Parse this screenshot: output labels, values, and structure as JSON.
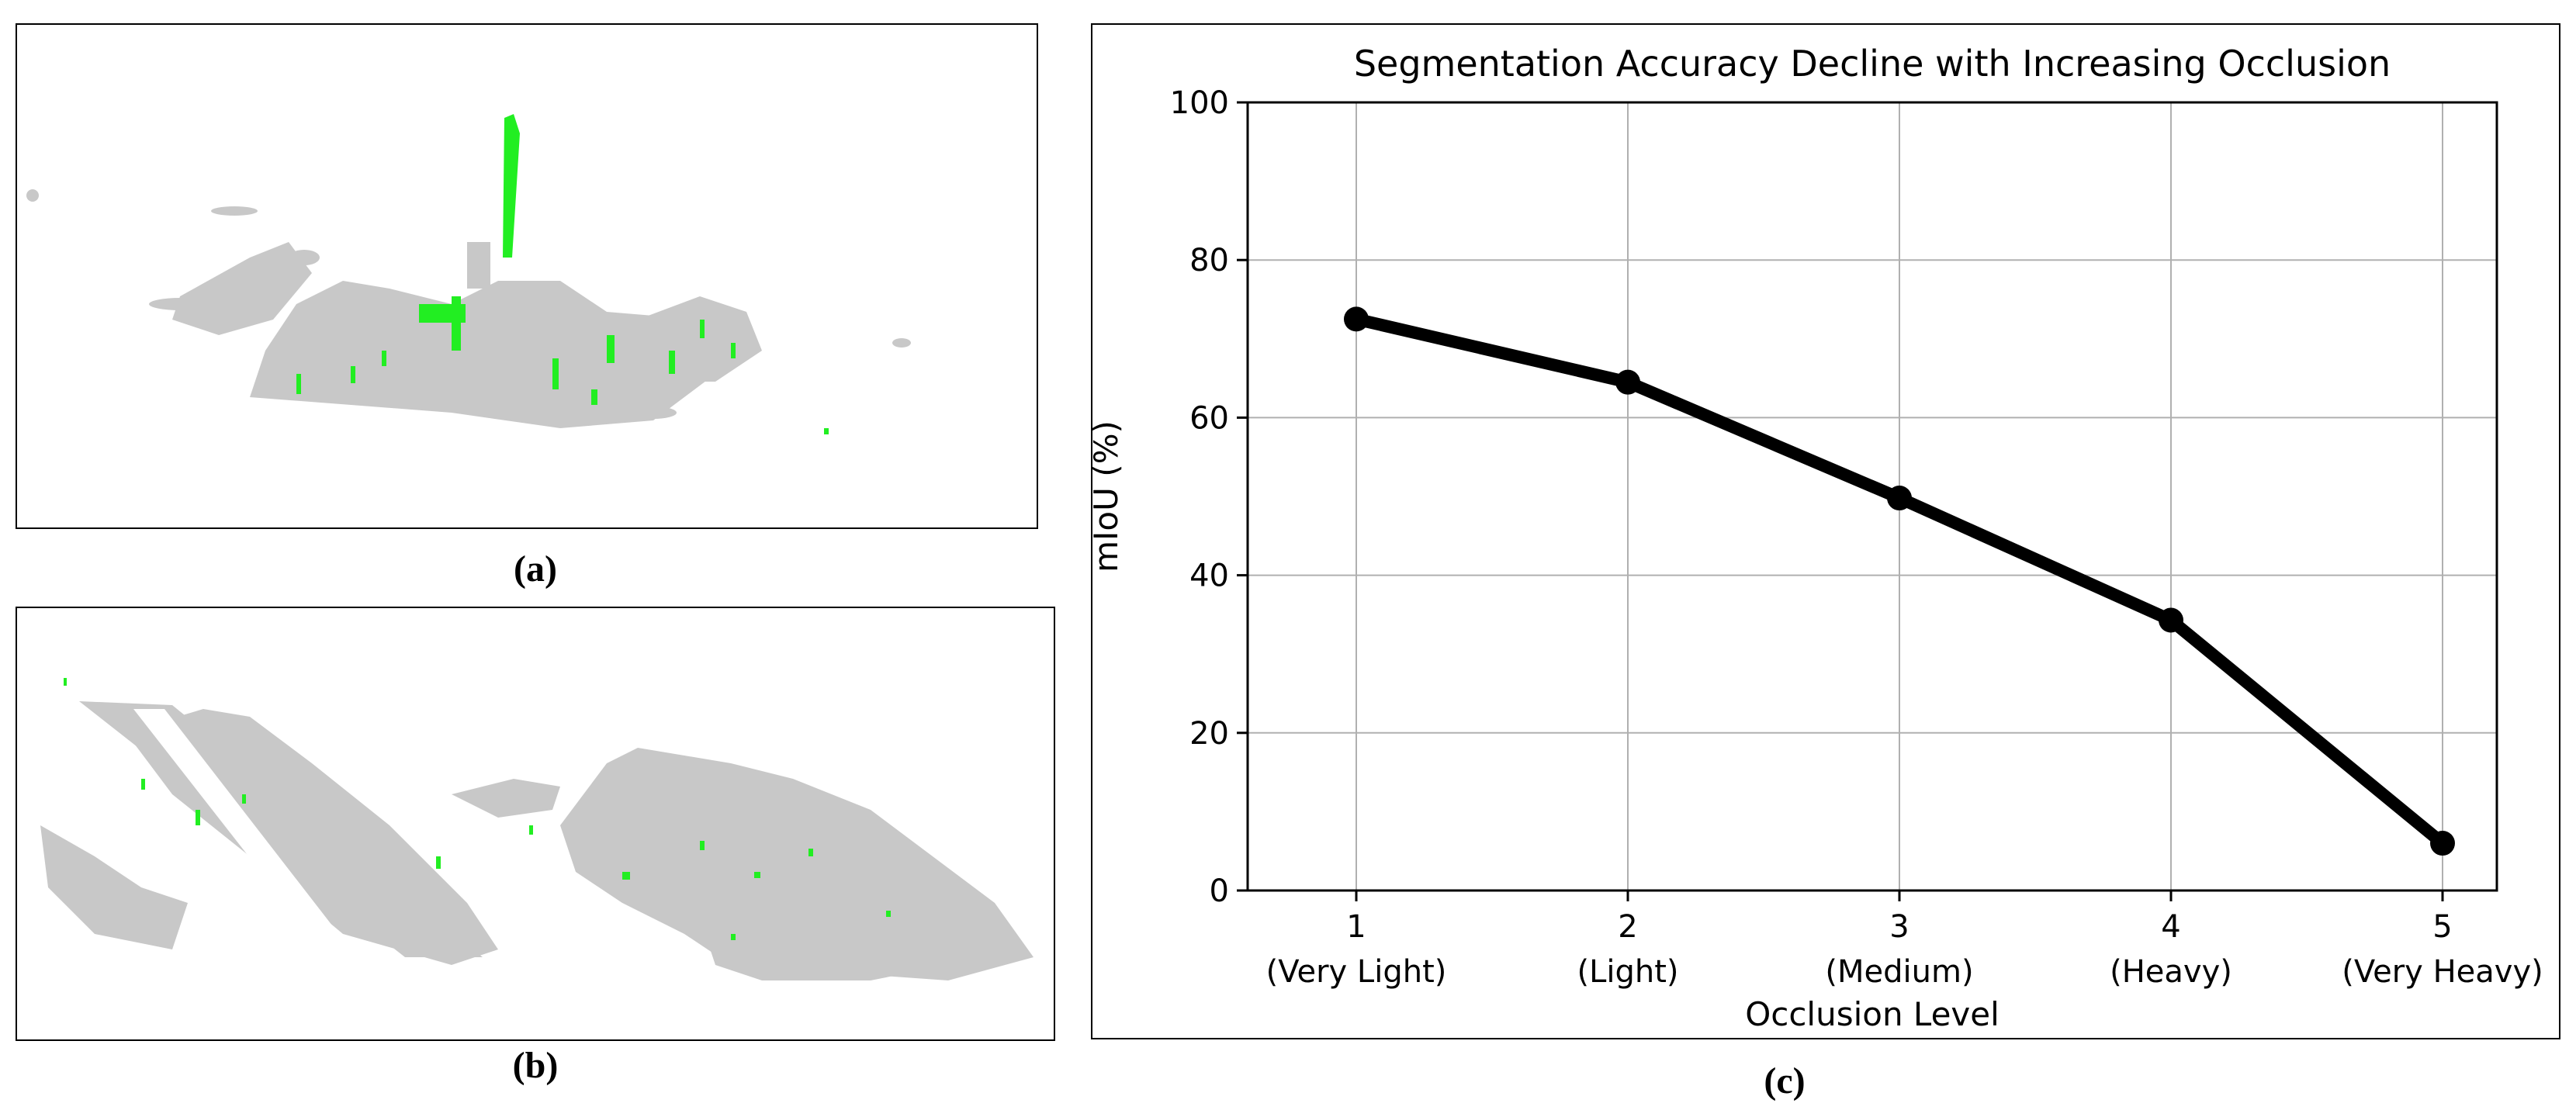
{
  "figure": {
    "captions": {
      "a": "(a)",
      "b": "(b)",
      "c": "(c)"
    }
  },
  "colors": {
    "cloud": "#c8c8c8",
    "highlight": "#22ee22",
    "line": "#000000",
    "grid": "#b0b0b0"
  },
  "chart_data": {
    "type": "line",
    "title": "Segmentation Accuracy Decline with Increasing Occlusion",
    "xlabel": "Occlusion Level",
    "ylabel": "mIoU (%)",
    "x": [
      1,
      2,
      3,
      4,
      5
    ],
    "xticks": [
      {
        "num": "1",
        "label": "(Very Light)"
      },
      {
        "num": "2",
        "label": "(Light)"
      },
      {
        "num": "3",
        "label": "(Medium)"
      },
      {
        "num": "4",
        "label": "(Heavy)"
      },
      {
        "num": "5",
        "label": "(Very Heavy)"
      }
    ],
    "series": [
      {
        "values": [
          72.5,
          64.5,
          49.8,
          34.3,
          6.0
        ]
      }
    ],
    "ylim": [
      0,
      100
    ],
    "yticks": [
      0,
      20,
      40,
      60,
      80,
      100
    ],
    "xlim": [
      0.6,
      5.2
    ],
    "grid": true
  }
}
